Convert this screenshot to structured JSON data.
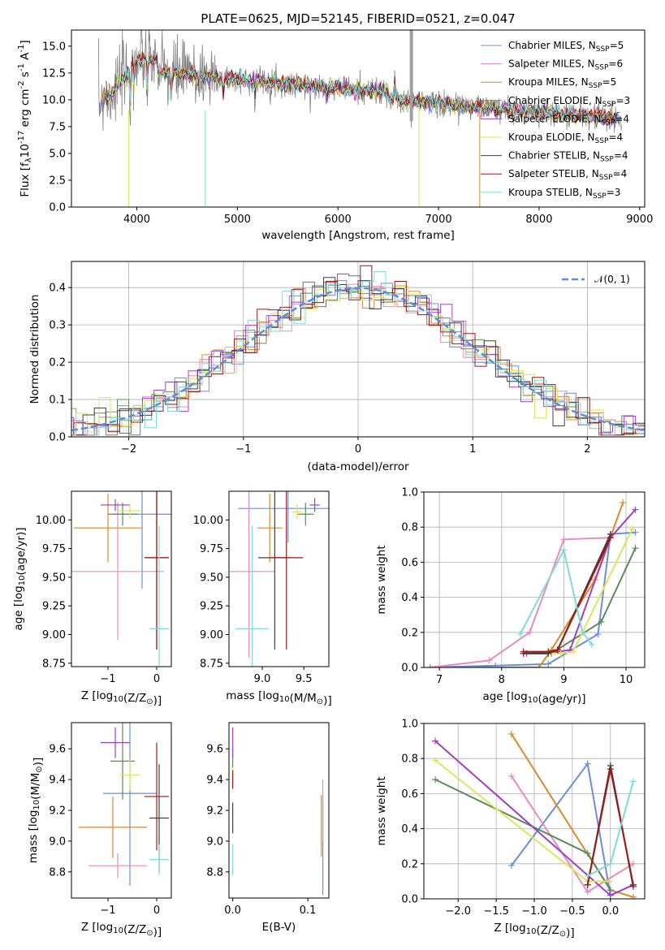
{
  "chart_data": [
    {
      "type": "line",
      "title": "PLATE=0625, MJD=52145, FIBERID=0521, z=0.047",
      "xlabel": "wavelength [Angstrom, rest frame]",
      "ylabel": "Flux [f",
      "ylabel_sub": "λ",
      "ylabel_mid": "10",
      "ylabel_exp": "-17",
      "ylabel_tail": " erg cm",
      "ylabel_exp2": "-2",
      "ylabel_tail2": " s",
      "ylabel_exp3": "-1",
      "ylabel_tail3": " A",
      "ylabel_exp4": "-1",
      "ylabel_end": "]",
      "xlim": [
        3350,
        9050
      ],
      "ylim": [
        0,
        16.5
      ],
      "xticks": [
        "4000",
        "5000",
        "6000",
        "7000",
        "8000",
        "9000"
      ],
      "yticks": [
        "0.0",
        "2.5",
        "5.0",
        "7.5",
        "10.0",
        "12.5",
        "15.0"
      ],
      "legend_position": "upper right",
      "data_color": "#808080",
      "series": [
        {
          "name": "Chabrier MILES, N",
          "sub": "SSP",
          "suffix": "=5",
          "color": "#6a8fd8"
        },
        {
          "name": "Salpeter MILES, N",
          "sub": "SSP",
          "suffix": "=6",
          "color": "#e88cbc"
        },
        {
          "name": "Kroupa MILES, N",
          "sub": "SSP",
          "suffix": "=5",
          "color": "#d98a2e"
        },
        {
          "name": "Chabrier ELODIE, N",
          "sub": "SSP",
          "suffix": "=3",
          "color": "#5c8a5c"
        },
        {
          "name": "Salpeter ELODIE, N",
          "sub": "SSP",
          "suffix": "=4",
          "color": "#a040c0"
        },
        {
          "name": "Kroupa ELODIE, N",
          "sub": "SSP",
          "suffix": "=4",
          "color": "#d9e85a"
        },
        {
          "name": "Chabrier STELIB, N",
          "sub": "SSP",
          "suffix": "=4",
          "color": "#404040"
        },
        {
          "name": "Salpeter STELIB, N",
          "sub": "SSP",
          "suffix": "=4",
          "color": "#a01818"
        },
        {
          "name": "Kroupa STELIB, N",
          "sub": "SSP",
          "suffix": "=3",
          "color": "#80dada"
        }
      ]
    },
    {
      "type": "histogram",
      "xlabel": "(data-model)/error",
      "ylabel": "Normed distribution",
      "xlim": [
        -2.5,
        2.5
      ],
      "ylim": [
        0,
        0.47
      ],
      "xticks": [
        "−2",
        "−1",
        "0",
        "1",
        "2"
      ],
      "yticks": [
        "0.0",
        "0.1",
        "0.2",
        "0.3",
        "0.4"
      ],
      "grid": true,
      "legend": "𝒩(0, 1)",
      "legend_position": "upper right",
      "reference_color": "#5b8fd8"
    },
    {
      "type": "errorbar",
      "xlabel": "Z [log",
      "xlabel_sub": "10",
      "xlabel_tail": "(Z/Z",
      "xlabel_sub2": "⊙",
      "xlabel_end": ")]",
      "ylabel": "age  [log",
      "ylabel_sub": "10",
      "ylabel_tail": "(age/yr)]",
      "xlim": [
        -1.75,
        0.3
      ],
      "ylim": [
        8.72,
        10.25
      ],
      "xticks": [
        "−1",
        "0"
      ],
      "yticks": [
        "8.75",
        "9.00",
        "9.25",
        "9.50",
        "9.75",
        "10.00"
      ],
      "points": [
        {
          "x": -0.3,
          "xerr": 0.6,
          "y": 10.05,
          "yerr": 0.65,
          "color": "#6a8fd8"
        },
        {
          "x": -0.8,
          "xerr": 0.95,
          "y": 9.55,
          "yerr": 0.6,
          "color": "#e88cbc"
        },
        {
          "x": -1.0,
          "xerr": 0.7,
          "y": 9.93,
          "yerr": 0.3,
          "color": "#d98a2e"
        },
        {
          "x": -0.7,
          "xerr": 0.3,
          "y": 10.05,
          "yerr": 0.1,
          "color": "#5c8a5c"
        },
        {
          "x": -0.85,
          "xerr": 0.3,
          "y": 10.13,
          "yerr": 0.05,
          "color": "#a040c0"
        },
        {
          "x": -0.55,
          "xerr": 0.25,
          "y": 10.08,
          "yerr": 0.07,
          "color": "#d9e85a"
        },
        {
          "x": 0.0,
          "xerr": 0.25,
          "y": 9.67,
          "yerr": 0.8,
          "color": "#404040"
        },
        {
          "x": 0.0,
          "xerr": 0.25,
          "y": 9.67,
          "yerr": 0.8,
          "color": "#a01818"
        },
        {
          "x": 0.05,
          "xerr": 0.2,
          "y": 9.05,
          "yerr": 0.9,
          "color": "#80dada"
        }
      ]
    },
    {
      "type": "errorbar",
      "xlabel": "mass [log",
      "xlabel_sub": "10",
      "xlabel_tail": "(M/M",
      "xlabel_sub2": "⊙",
      "xlabel_end": ")]",
      "xlim": [
        8.6,
        9.8
      ],
      "ylim": [
        8.72,
        10.25
      ],
      "xticks": [
        "9.0",
        "9.5"
      ],
      "yticks": [
        "8.75",
        "9.00",
        "9.25",
        "9.50",
        "9.75",
        "10.00"
      ],
      "points": [
        {
          "x": 9.31,
          "xerr": 0.6,
          "y": 10.1,
          "yerr": 0.3,
          "color": "#6a8fd8"
        },
        {
          "x": 8.84,
          "xerr": 0.3,
          "y": 9.55,
          "yerr": 0.75,
          "color": "#e88cbc"
        },
        {
          "x": 9.09,
          "xerr": 0.15,
          "y": 9.93,
          "yerr": 0.3,
          "color": "#d98a2e"
        },
        {
          "x": 9.52,
          "xerr": 0.1,
          "y": 10.05,
          "yerr": 0.1,
          "color": "#5c8a5c"
        },
        {
          "x": 9.63,
          "xerr": 0.06,
          "y": 10.13,
          "yerr": 0.06,
          "color": "#a040c0"
        },
        {
          "x": 9.42,
          "xerr": 0.06,
          "y": 10.07,
          "yerr": 0.07,
          "color": "#d9e85a"
        },
        {
          "x": 9.15,
          "xerr": 0.2,
          "y": 9.67,
          "yerr": 0.8,
          "color": "#404040"
        },
        {
          "x": 9.29,
          "xerr": 0.2,
          "y": 9.67,
          "yerr": 0.8,
          "color": "#a01818"
        },
        {
          "x": 8.88,
          "xerr": 0.2,
          "y": 9.05,
          "yerr": 0.9,
          "color": "#80dada"
        }
      ]
    },
    {
      "type": "line",
      "xlabel": "age  [log",
      "xlabel_sub": "10",
      "xlabel_tail": "(age/yr)]",
      "ylabel": "mass weight",
      "xlim": [
        6.75,
        10.3
      ],
      "ylim": [
        0,
        1.0
      ],
      "xticks": [
        "7",
        "8",
        "9",
        "10"
      ],
      "yticks": [
        "0.0",
        "0.2",
        "0.4",
        "0.6",
        "0.8",
        "1.0"
      ],
      "grid": true,
      "series": [
        {
          "color": "#6a8fd8",
          "x": [
            6.85,
            7.9,
            8.75,
            9.55,
            9.75,
            10.15
          ],
          "y": [
            0.0,
            0.01,
            0.02,
            0.19,
            0.76,
            0.77
          ]
        },
        {
          "color": "#e88cbc",
          "x": [
            6.85,
            7.8,
            8.45,
            9.0,
            9.75
          ],
          "y": [
            0.0,
            0.04,
            0.2,
            0.73,
            0.74
          ]
        },
        {
          "color": "#d98a2e",
          "x": [
            6.85,
            8.6,
            8.8,
            9.5,
            9.95
          ],
          "y": [
            0.0,
            0.0,
            0.1,
            0.5,
            0.94
          ]
        },
        {
          "color": "#5c8a5c",
          "x": [
            8.35,
            8.8,
            9.6,
            10.15
          ],
          "y": [
            0.08,
            0.08,
            0.26,
            0.68
          ]
        },
        {
          "color": "#a040c0",
          "x": [
            8.4,
            8.75,
            9.1,
            9.75,
            10.15
          ],
          "y": [
            0.08,
            0.08,
            0.1,
            0.74,
            0.9
          ]
        },
        {
          "color": "#d9e85a",
          "x": [
            8.75,
            8.95,
            9.15,
            10.1
          ],
          "y": [
            0.08,
            0.08,
            0.09,
            0.79
          ]
        },
        {
          "color": "#404040",
          "x": [
            8.35,
            8.75,
            8.9,
            9.75
          ],
          "y": [
            0.08,
            0.08,
            0.1,
            0.76
          ]
        },
        {
          "color": "#a01818",
          "x": [
            8.35,
            8.75,
            8.9,
            9.75
          ],
          "y": [
            0.09,
            0.09,
            0.1,
            0.74
          ]
        },
        {
          "color": "#80dada",
          "x": [
            8.3,
            9.0,
            9.3,
            9.45
          ],
          "y": [
            0.19,
            0.67,
            0.2,
            0.13
          ]
        }
      ]
    },
    {
      "type": "errorbar",
      "xlabel": "Z [log",
      "xlabel_sub": "10",
      "xlabel_tail": "(Z/Z",
      "xlabel_sub2": "⊙",
      "xlabel_end": ")]",
      "ylabel": "mass [log",
      "ylabel_sub": "10",
      "ylabel_tail": "(M/M",
      "ylabel_sub2": "⊙",
      "ylabel_end": ")]",
      "xlim": [
        -1.75,
        0.3
      ],
      "ylim": [
        8.63,
        9.77
      ],
      "xticks": [
        "−1",
        "0"
      ],
      "yticks": [
        "8.8",
        "9.0",
        "9.2",
        "9.4",
        "9.6"
      ],
      "points": [
        {
          "x": -0.55,
          "xerr": 0.55,
          "y": 9.31,
          "yerr": 0.6,
          "color": "#6a8fd8"
        },
        {
          "x": -0.8,
          "xerr": 0.6,
          "y": 8.84,
          "yerr": 0.08,
          "color": "#e88cbc"
        },
        {
          "x": -0.9,
          "xerr": 0.7,
          "y": 9.09,
          "yerr": 0.2,
          "color": "#d98a2e"
        },
        {
          "x": -0.7,
          "xerr": 0.25,
          "y": 9.52,
          "yerr": 0.25,
          "color": "#5c8a5c"
        },
        {
          "x": -0.85,
          "xerr": 0.3,
          "y": 9.64,
          "yerr": 0.1,
          "color": "#a040c0"
        },
        {
          "x": -0.55,
          "xerr": 0.2,
          "y": 9.43,
          "yerr": 0.1,
          "color": "#d9e85a"
        },
        {
          "x": 0.05,
          "xerr": 0.2,
          "y": 9.15,
          "yerr": 0.35,
          "color": "#404040"
        },
        {
          "x": 0.0,
          "xerr": 0.25,
          "y": 9.29,
          "yerr": 0.35,
          "color": "#a01818"
        },
        {
          "x": 0.05,
          "xerr": 0.2,
          "y": 8.88,
          "yerr": 0.1,
          "color": "#80dada"
        }
      ]
    },
    {
      "type": "errorbar",
      "xlabel": "E(B-V)",
      "xlim": [
        -0.005,
        0.128
      ],
      "ylim": [
        8.63,
        9.77
      ],
      "xticks": [
        "0.0",
        "0.1"
      ],
      "yticks": [
        "8.8",
        "9.0",
        "9.2",
        "9.4",
        "9.6"
      ],
      "points": [
        {
          "x": 0.12,
          "xerr": 0.0,
          "y": 8.95,
          "yerr": 0.3,
          "color": "#6a8fd8"
        },
        {
          "x": 0.12,
          "xerr": 0.0,
          "y": 9.2,
          "yerr": 0.2,
          "color": "#e88cbc"
        },
        {
          "x": 0.118,
          "xerr": 0.0,
          "y": 9.1,
          "yerr": 0.2,
          "color": "#d98a2e"
        },
        {
          "x": 0.0,
          "xerr": 0.0,
          "y": 9.52,
          "yerr": 0.05,
          "color": "#5c8a5c"
        },
        {
          "x": 0.0,
          "xerr": 0.0,
          "y": 9.64,
          "yerr": 0.1,
          "color": "#a040c0"
        },
        {
          "x": 0.0,
          "xerr": 0.0,
          "y": 9.43,
          "yerr": 0.05,
          "color": "#d9e85a"
        },
        {
          "x": 0.0,
          "xerr": 0.0,
          "y": 9.15,
          "yerr": 0.1,
          "color": "#404040"
        },
        {
          "x": 0.0,
          "xerr": 0.0,
          "y": 9.4,
          "yerr": 0.06,
          "color": "#a01818"
        },
        {
          "x": 0.0,
          "xerr": 0.0,
          "y": 8.88,
          "yerr": 0.1,
          "color": "#80dada"
        }
      ]
    },
    {
      "type": "line",
      "xlabel": "Z [log",
      "xlabel_sub": "10",
      "xlabel_tail": "(Z/Z",
      "xlabel_sub2": "⊙",
      "xlabel_end": ")]",
      "ylabel": "mass weight",
      "xlim": [
        -2.45,
        0.45
      ],
      "ylim": [
        0,
        1.0
      ],
      "xticks": [
        "−2.0",
        "−1.5",
        "−1.0",
        "−0.5",
        "0.0"
      ],
      "yticks": [
        "0.0",
        "0.2",
        "0.4",
        "0.6",
        "0.8",
        "1.0"
      ],
      "grid": true,
      "series": [
        {
          "color": "#6a8fd8",
          "x": [
            -1.3,
            -0.3,
            0.0
          ],
          "y": [
            0.19,
            0.77,
            0.02
          ]
        },
        {
          "color": "#e88cbc",
          "x": [
            -1.3,
            -0.3,
            0.3
          ],
          "y": [
            0.7,
            0.04,
            0.2
          ]
        },
        {
          "color": "#d98a2e",
          "x": [
            -1.3,
            0.0,
            0.3
          ],
          "y": [
            0.94,
            0.05,
            0.01
          ]
        },
        {
          "color": "#5c8a5c",
          "x": [
            -2.3,
            -0.3,
            0.0
          ],
          "y": [
            0.68,
            0.26,
            0.05
          ]
        },
        {
          "color": "#a040c0",
          "x": [
            -2.3,
            0.0,
            0.3
          ],
          "y": [
            0.9,
            0.02,
            0.08
          ]
        },
        {
          "color": "#d9e85a",
          "x": [
            -2.3,
            -0.3,
            0.0
          ],
          "y": [
            0.79,
            0.1,
            0.1
          ]
        },
        {
          "color": "#404040",
          "x": [
            -0.3,
            0.0,
            0.3
          ],
          "y": [
            0.08,
            0.76,
            0.07
          ]
        },
        {
          "color": "#a01818",
          "x": [
            -0.3,
            0.0,
            0.3
          ],
          "y": [
            0.08,
            0.74,
            0.08
          ]
        },
        {
          "color": "#80dada",
          "x": [
            -0.3,
            0.0,
            0.3
          ],
          "y": [
            0.13,
            0.2,
            0.67
          ]
        }
      ]
    }
  ]
}
